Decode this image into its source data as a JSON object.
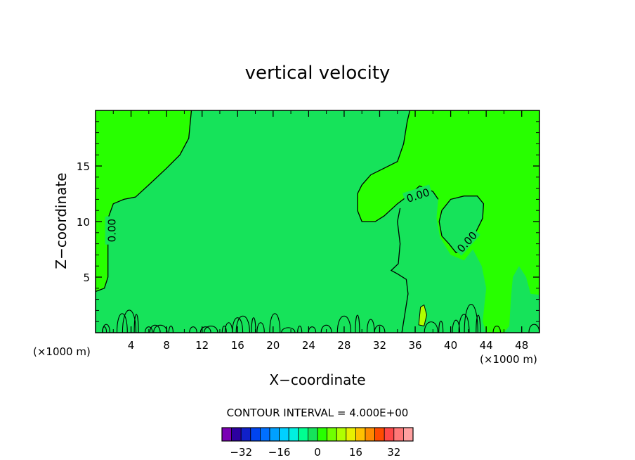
{
  "chart_data": {
    "type": "contour",
    "title": "vertical velocity",
    "xlabel": "X−coordinate",
    "ylabel": "Z−coordinate",
    "x_unit_left": "(×1000 m)",
    "x_unit_right": "(×1000 m)",
    "xlim": [
      0,
      50
    ],
    "ylim": [
      0,
      20
    ],
    "x_ticks": [
      4,
      8,
      12,
      16,
      20,
      24,
      28,
      32,
      36,
      40,
      44,
      48
    ],
    "y_ticks": [
      5,
      10,
      15
    ],
    "contour_label": "0.00",
    "contour_interval_text": "CONTOUR INTERVAL = 4.000E+00",
    "colorbar": {
      "ticks": [
        "−32",
        "−16",
        "0",
        "16",
        "32"
      ],
      "tick_values": [
        -32,
        -16,
        0,
        16,
        32
      ],
      "levels": [
        -36,
        -32,
        -28,
        -24,
        -20,
        -16,
        -12,
        -8,
        -4,
        0,
        4,
        8,
        12,
        16,
        20,
        24,
        28,
        32,
        36
      ],
      "colors": [
        "#7a00b4",
        "#2c00a0",
        "#1020c8",
        "#0044f0",
        "#0070ff",
        "#00a0ff",
        "#00d0ff",
        "#00f0e0",
        "#00ff90",
        "#16e35a",
        "#28ff00",
        "#70ff00",
        "#b0ff00",
        "#e8f000",
        "#ffc000",
        "#ff8a00",
        "#ff4b00",
        "#ff4848",
        "#ff7878",
        "#ffa0a0"
      ]
    },
    "field_colors": {
      "near_zero": "#16e35a",
      "positive": "#28ff00",
      "strong_positive": "#b0ff00"
    },
    "grid": false
  }
}
